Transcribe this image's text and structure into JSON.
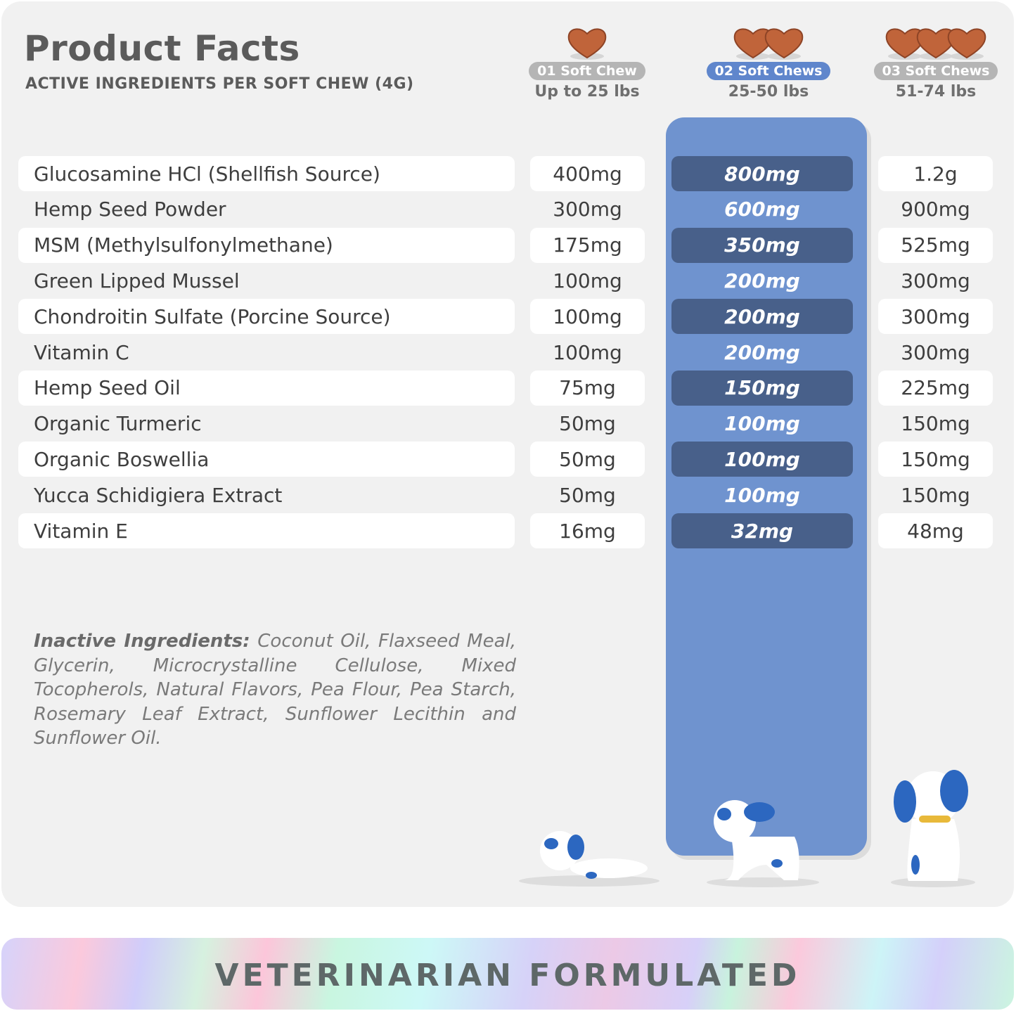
{
  "header": {
    "title": "Product Facts",
    "subtitle": "ACTIVE INGREDIENTS PER SOFT CHEW (4G)"
  },
  "columns": [
    {
      "dose": "01 Soft Chew",
      "weight": "Up to 25 lbs",
      "hearts": 1,
      "highlighted": false
    },
    {
      "dose": "02 Soft Chews",
      "weight": "25-50 lbs",
      "hearts": 2,
      "highlighted": true
    },
    {
      "dose": "03 Soft Chews",
      "weight": "51-74 lbs",
      "hearts": 3,
      "highlighted": false
    }
  ],
  "ingredients": [
    {
      "name": "Glucosamine HCl (Shellfish Source)",
      "v1": "400mg",
      "v2": "800mg",
      "v3": "1.2g"
    },
    {
      "name": "Hemp Seed Powder",
      "v1": "300mg",
      "v2": "600mg",
      "v3": "900mg"
    },
    {
      "name": "MSM (Methylsulfonylmethane)",
      "v1": "175mg",
      "v2": "350mg",
      "v3": "525mg"
    },
    {
      "name": "Green Lipped Mussel",
      "v1": "100mg",
      "v2": "200mg",
      "v3": "300mg"
    },
    {
      "name": "Chondroitin Sulfate (Porcine Source)",
      "v1": "100mg",
      "v2": "200mg",
      "v3": "300mg"
    },
    {
      "name": "Vitamin C",
      "v1": "100mg",
      "v2": "200mg",
      "v3": "300mg"
    },
    {
      "name": "Hemp Seed Oil",
      "v1": "75mg",
      "v2": "150mg",
      "v3": "225mg"
    },
    {
      "name": "Organic Turmeric",
      "v1": "50mg",
      "v2": "100mg",
      "v3": "150mg"
    },
    {
      "name": "Organic Boswellia",
      "v1": "50mg",
      "v2": "100mg",
      "v3": "150mg"
    },
    {
      "name": "Yucca Schidigiera Extract",
      "v1": "50mg",
      "v2": "100mg",
      "v3": "150mg"
    },
    {
      "name": "Vitamin E",
      "v1": "16mg",
      "v2": "32mg",
      "v3": "48mg"
    }
  ],
  "inactive": {
    "label": "Inactive Ingredients:",
    "text": "Coconut Oil, Flaxseed Meal, Glycerin, Microcrystalline Cellulose, Mixed Tocopherols, Natural Flavors, Pea Flour, Pea Starch, Rosemary Leaf Extract, Sunflower Lecithin and Sunflower Oil."
  },
  "banner": {
    "text": "VETERINARIAN FORMULATED"
  },
  "colors": {
    "accent": "#6f93cf",
    "accent_dark": "#48608a",
    "chew": "#c0643a",
    "text": "#5b5b5b"
  }
}
